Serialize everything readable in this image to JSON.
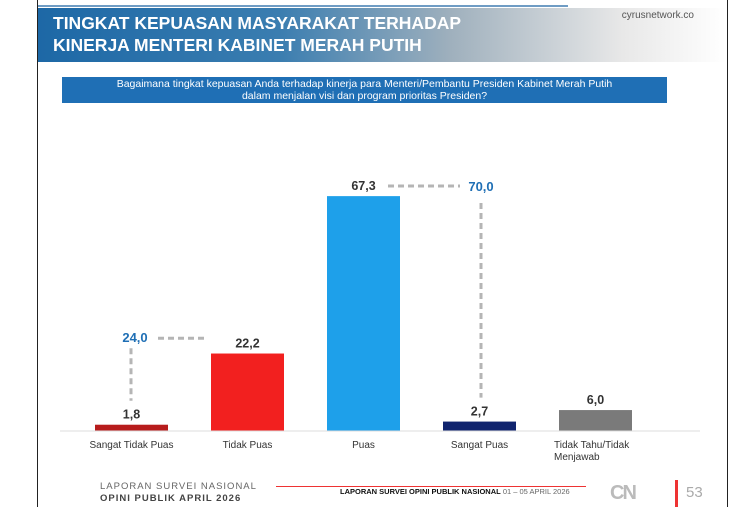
{
  "header": {
    "title_line1": "TINGKAT KEPUASAN MASYARAKAT TERHADAP",
    "title_line2": "KINERJA MENTERI KABINET MERAH PUTIH",
    "site": "cyrusnetwork.co"
  },
  "question": {
    "line1": "Bagaimana tingkat kepuasan Anda terhadap kinerja para Menteri/Pembantu Presiden Kabinet Merah Putih",
    "line2": "dalam menjalan visi dan program prioritas Presiden?"
  },
  "chart_data": {
    "type": "bar",
    "categories": [
      "Sangat Tidak Puas",
      "Tidak Puas",
      "Puas",
      "Sangat Puas",
      "Tidak Tahu/Tidak Menjawab"
    ],
    "values": [
      1.8,
      22.2,
      67.3,
      2.7,
      6.0
    ],
    "value_labels": [
      "1,8",
      "22,2",
      "67,3",
      "2,7",
      "6,0"
    ],
    "colors": [
      "#b71c1c",
      "#f2201f",
      "#1ea0ea",
      "#10246e",
      "#7a7a7a"
    ],
    "aggregates": [
      {
        "label": "24,0",
        "value": 24.0,
        "categories": [
          "Sangat Tidak Puas",
          "Tidak Puas"
        ]
      },
      {
        "label": "70,0",
        "value": 70.0,
        "categories": [
          "Puas",
          "Sangat Puas"
        ]
      }
    ],
    "aggregate_color": "#1f6fb5",
    "grid": false
  },
  "footer": {
    "line1": "LAPORAN SURVEI NASIONAL",
    "line2": "OPINI PUBLIK APRIL 2026",
    "mid_bold": "LAPORAN SURVEI OPINI PUBLIK NASIONAL",
    "mid_date": "01 – 05 APRIL 2026",
    "logo": "CN",
    "page": "53"
  }
}
